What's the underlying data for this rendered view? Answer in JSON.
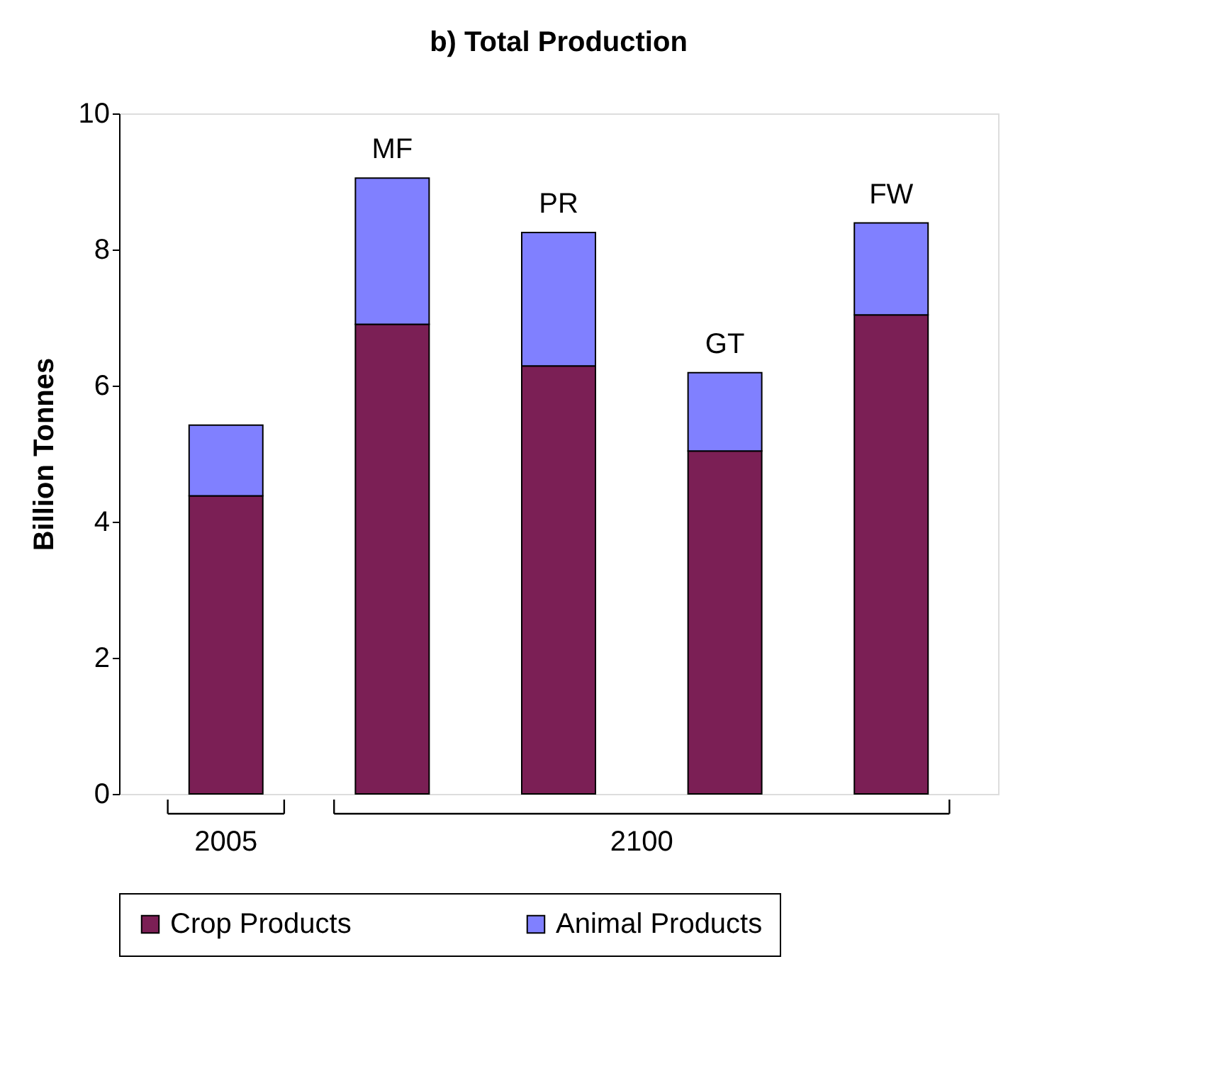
{
  "chart_data": {
    "type": "bar",
    "title": "b) Total Production",
    "ylabel": "Billion Tonnes",
    "stacked": true,
    "categories": [
      null,
      "MF",
      "PR",
      "GT",
      "FW"
    ],
    "series": [
      {
        "name": "Crop Products",
        "color": "#7b1f55",
        "values": [
          4.38,
          6.9,
          6.29,
          5.04,
          7.04
        ]
      },
      {
        "name": "Animal Products",
        "color": "#8080ff",
        "values": [
          1.04,
          2.15,
          1.96,
          1.15,
          1.35
        ]
      }
    ],
    "ylim": [
      0,
      10
    ],
    "yticks": [
      0,
      2,
      4,
      6,
      8,
      10
    ],
    "grid": false,
    "legend": "bottom",
    "annotations": [
      "2005",
      "2100"
    ]
  }
}
